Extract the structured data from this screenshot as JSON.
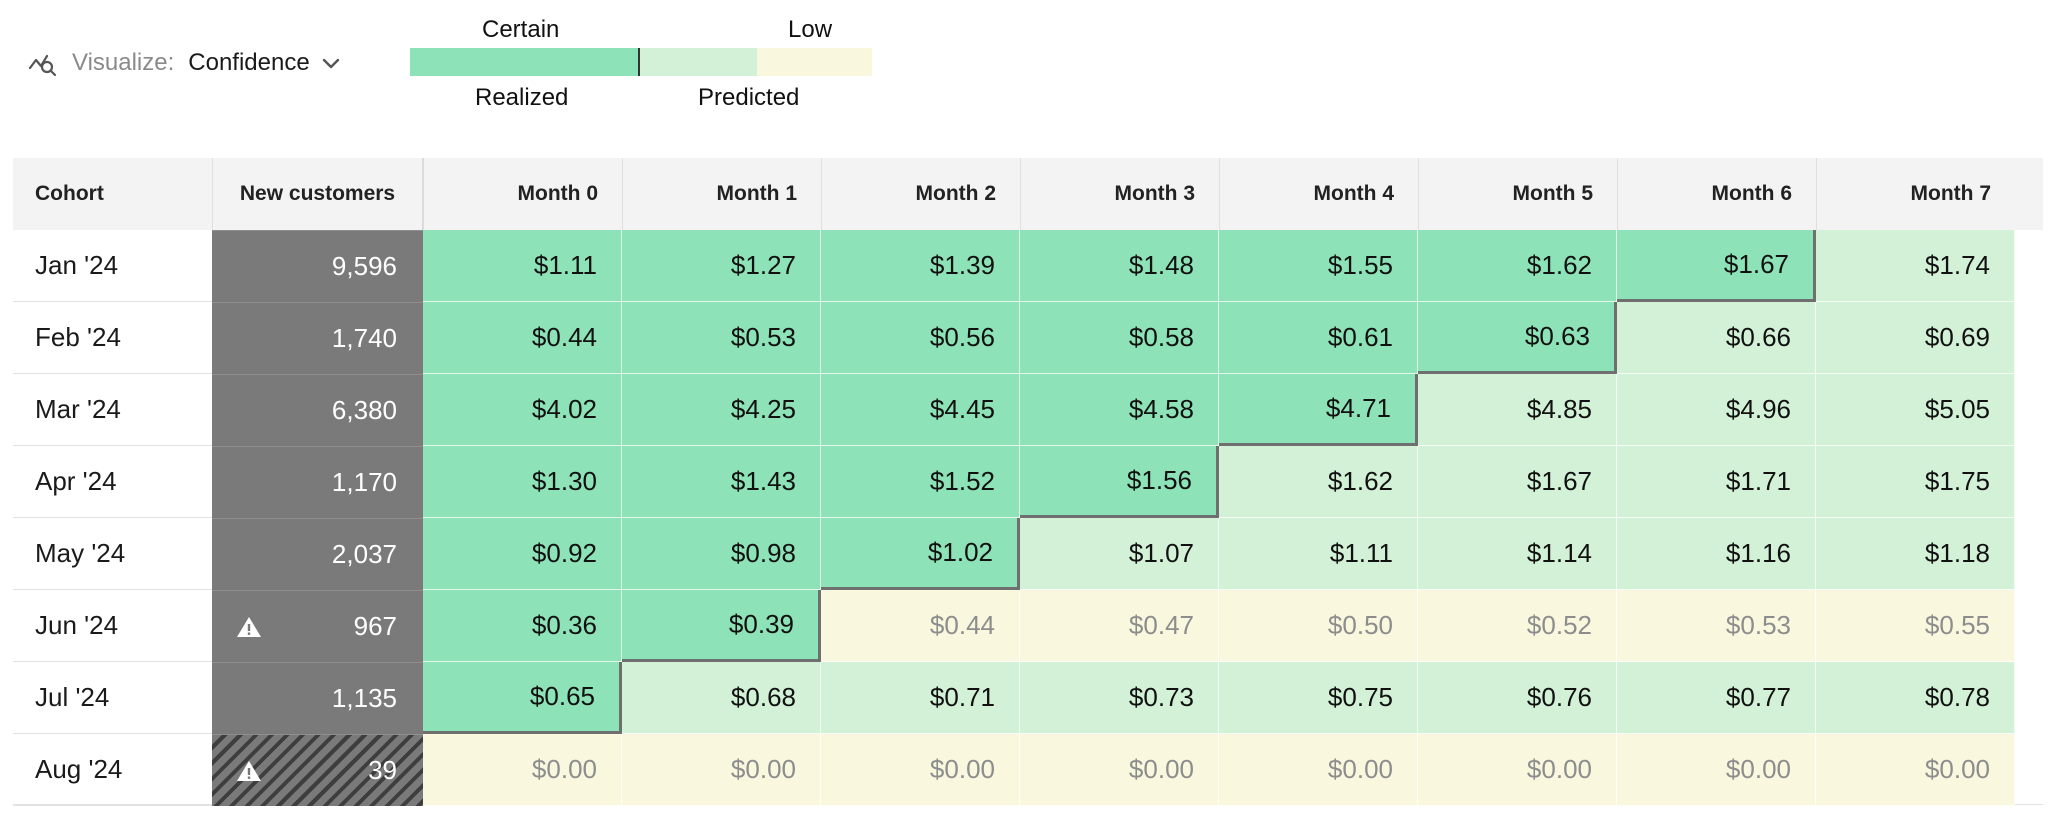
{
  "toolbar": {
    "visualize_label": "Visualize:",
    "visualize_value": "Confidence",
    "icon": "chart-analyze-icon",
    "dropdown_icon": "chevron-down-icon"
  },
  "legend": {
    "certain": "Certain",
    "low": "Low",
    "realized": "Realized",
    "predicted": "Predicted",
    "colors": {
      "realized": "#8de2b7",
      "predicted": "#d2f1d6",
      "low": "#f9f8df"
    }
  },
  "table": {
    "headers": {
      "cohort": "Cohort",
      "new_customers": "New customers",
      "months": [
        "Month 0",
        "Month 1",
        "Month 2",
        "Month 3",
        "Month 4",
        "Month 5",
        "Month 6",
        "Month 7"
      ]
    },
    "rows": [
      {
        "cohort": "Jan '24",
        "new_customers": "9,596",
        "warning": false,
        "incomplete": false,
        "realized_months": 7,
        "low_confidence": false,
        "values": [
          "$1.11",
          "$1.27",
          "$1.39",
          "$1.48",
          "$1.55",
          "$1.62",
          "$1.67",
          "$1.74"
        ]
      },
      {
        "cohort": "Feb '24",
        "new_customers": "1,740",
        "warning": false,
        "incomplete": false,
        "realized_months": 6,
        "low_confidence": false,
        "values": [
          "$0.44",
          "$0.53",
          "$0.56",
          "$0.58",
          "$0.61",
          "$0.63",
          "$0.66",
          "$0.69"
        ]
      },
      {
        "cohort": "Mar '24",
        "new_customers": "6,380",
        "warning": false,
        "incomplete": false,
        "realized_months": 5,
        "low_confidence": false,
        "values": [
          "$4.02",
          "$4.25",
          "$4.45",
          "$4.58",
          "$4.71",
          "$4.85",
          "$4.96",
          "$5.05"
        ]
      },
      {
        "cohort": "Apr '24",
        "new_customers": "1,170",
        "warning": false,
        "incomplete": false,
        "realized_months": 4,
        "low_confidence": false,
        "values": [
          "$1.30",
          "$1.43",
          "$1.52",
          "$1.56",
          "$1.62",
          "$1.67",
          "$1.71",
          "$1.75"
        ]
      },
      {
        "cohort": "May '24",
        "new_customers": "2,037",
        "warning": false,
        "incomplete": false,
        "realized_months": 3,
        "low_confidence": false,
        "values": [
          "$0.92",
          "$0.98",
          "$1.02",
          "$1.07",
          "$1.11",
          "$1.14",
          "$1.16",
          "$1.18"
        ]
      },
      {
        "cohort": "Jun '24",
        "new_customers": "967",
        "warning": true,
        "incomplete": false,
        "realized_months": 2,
        "low_confidence": true,
        "values": [
          "$0.36",
          "$0.39",
          "$0.44",
          "$0.47",
          "$0.50",
          "$0.52",
          "$0.53",
          "$0.55"
        ]
      },
      {
        "cohort": "Jul '24",
        "new_customers": "1,135",
        "warning": false,
        "incomplete": false,
        "realized_months": 1,
        "low_confidence": false,
        "values": [
          "$0.65",
          "$0.68",
          "$0.71",
          "$0.73",
          "$0.75",
          "$0.76",
          "$0.77",
          "$0.78"
        ]
      },
      {
        "cohort": "Aug '24",
        "new_customers": "39",
        "warning": true,
        "incomplete": true,
        "realized_months": 0,
        "low_confidence": true,
        "values": [
          "$0.00",
          "$0.00",
          "$0.00",
          "$0.00",
          "$0.00",
          "$0.00",
          "$0.00",
          "$0.00"
        ]
      }
    ]
  }
}
